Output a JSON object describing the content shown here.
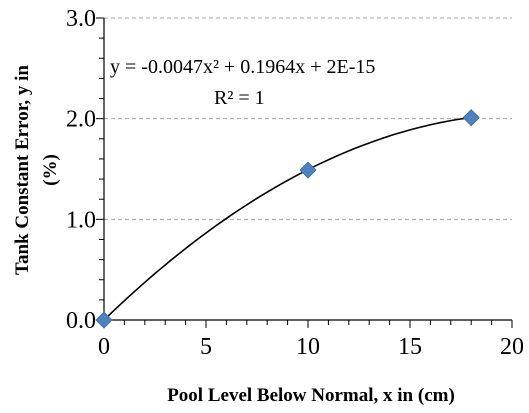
{
  "chart_data": {
    "type": "scatter",
    "xlabel": "Pool Level Below Normal, x in (cm)",
    "ylabel_line1": "Tank Constant Error, y in",
    "ylabel_line2": "(%)",
    "xlim": [
      0,
      20
    ],
    "ylim": [
      0,
      3
    ],
    "x_ticks": [
      "0",
      "5",
      "10",
      "15",
      "20"
    ],
    "y_ticks": [
      "0.0",
      "1.0",
      "2.0",
      "3.0"
    ],
    "x_minor_step": 1,
    "y_minor_step": 0.2,
    "grid": "horizontal dashed",
    "points": [
      {
        "x": 0,
        "y": 0.0
      },
      {
        "x": 10,
        "y": 1.49
      },
      {
        "x": 18,
        "y": 2.01
      }
    ],
    "trendline": {
      "type": "polynomial",
      "coefficients": [
        -0.0047,
        0.1964,
        0
      ],
      "x_range": [
        0,
        18
      ]
    },
    "equation_text": "y = -0.0047x² + 0.1964x + 2E-15",
    "r2_text": "R² = 1",
    "marker_color": "#4f81bd"
  }
}
